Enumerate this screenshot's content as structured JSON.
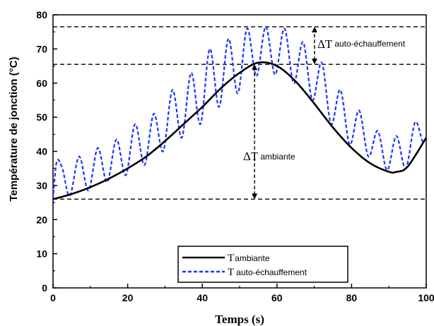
{
  "chart_data": {
    "type": "line",
    "title": "",
    "xlabel": "Temps (s)",
    "ylabel": "Température de jonction (°C)",
    "xlim": [
      0,
      100
    ],
    "ylim": [
      0,
      80
    ],
    "xticks": [
      0,
      20,
      40,
      60,
      80,
      100
    ],
    "yticks": [
      0,
      10,
      20,
      30,
      40,
      50,
      60,
      70,
      80
    ],
    "grid": false,
    "legend_position": "bottom-center",
    "series": [
      {
        "name_symbol": "T",
        "name_sub": "ambiante",
        "style": "solid",
        "color": "#000000",
        "x": [
          0,
          5,
          10,
          15,
          20,
          25,
          30,
          35,
          40,
          45,
          50,
          55,
          60,
          65,
          70,
          75,
          80,
          85,
          90,
          92,
          95,
          100
        ],
        "y": [
          26,
          27.5,
          29.5,
          32,
          35,
          38.5,
          43,
          48,
          53,
          58.5,
          63,
          66,
          65,
          60.5,
          54,
          47,
          41,
          36.5,
          34,
          34,
          35.5,
          44
        ]
      },
      {
        "name_symbol": "T",
        "name_sub": "auto-échauffement",
        "style": "dashed",
        "color": "#1a35ff",
        "x": [
          0,
          1,
          2.5,
          4.5,
          7,
          9.5,
          12,
          14.5,
          17,
          19.5,
          22,
          24.5,
          27,
          29.5,
          32,
          34.5,
          37,
          39.5,
          42,
          44.5,
          47,
          49.5,
          52,
          54.5,
          57,
          59.5,
          62,
          64.5,
          67,
          69.5,
          72,
          74.5,
          77,
          79.5,
          82,
          84.5,
          87,
          89.5,
          92,
          94.5,
          97,
          99,
          100
        ],
        "y": [
          26,
          37,
          35,
          27,
          38.5,
          28.5,
          41,
          31,
          43.5,
          33,
          48,
          36,
          51,
          40,
          58,
          44,
          63,
          48,
          70,
          53,
          73,
          57,
          76,
          62,
          76.5,
          62.5,
          76,
          60,
          72,
          55,
          66,
          48,
          58,
          42,
          52,
          38.5,
          46,
          34.5,
          44.5,
          35,
          48.5,
          43,
          44
        ]
      }
    ],
    "annotations": {
      "reference_lines_y": [
        76.5,
        65.5,
        26
      ],
      "delta_self_heating": {
        "symbol": "ΔT",
        "sub": "auto-échauffement",
        "y_from": 65.5,
        "y_to": 76.5
      },
      "delta_ambient": {
        "symbol": "ΔT",
        "sub": "ambiante",
        "y_from": 26,
        "y_to": 65.5,
        "x": 54
      }
    }
  }
}
